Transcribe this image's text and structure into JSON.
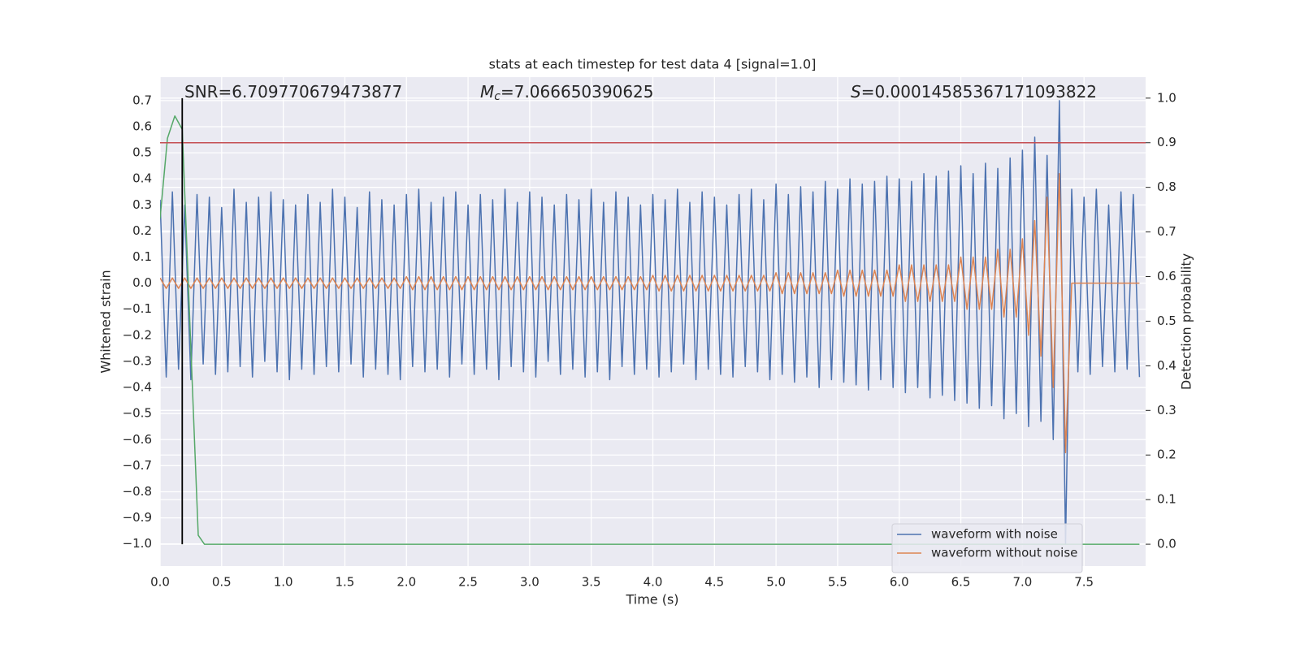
{
  "chart_data": {
    "type": "line",
    "title": "stats at each timestep for test data 4 [signal=1.0]",
    "xlabel": "Time (s)",
    "ylabel": "Whitened strain",
    "y2label": "Detection probability",
    "annotations": [
      {
        "text": "SNR=6.709770679473877"
      },
      {
        "symbol": "M",
        "subscript": "c",
        "text": "=7.066650390625"
      },
      {
        "symbol": "S",
        "text": "=0.00014585367171093822"
      }
    ],
    "xlim": [
      0,
      8.0
    ],
    "ylim": [
      -1.085,
      0.79
    ],
    "y2lim": [
      -0.049,
      1.047
    ],
    "xticks": [
      {
        "value": 0,
        "label": "0.0"
      },
      {
        "value": 0.5,
        "label": "0.5"
      },
      {
        "value": 1,
        "label": "1.0"
      },
      {
        "value": 1.5,
        "label": "1.5"
      },
      {
        "value": 2,
        "label": "2.0"
      },
      {
        "value": 2.5,
        "label": "2.5"
      },
      {
        "value": 3,
        "label": "3.0"
      },
      {
        "value": 3.5,
        "label": "3.5"
      },
      {
        "value": 4,
        "label": "4.0"
      },
      {
        "value": 4.5,
        "label": "4.5"
      },
      {
        "value": 5,
        "label": "5.0"
      },
      {
        "value": 5.5,
        "label": "5.5"
      },
      {
        "value": 6,
        "label": "6.0"
      },
      {
        "value": 6.5,
        "label": "6.5"
      },
      {
        "value": 7,
        "label": "7.0"
      },
      {
        "value": 7.5,
        "label": "7.5"
      }
    ],
    "yticks": [
      {
        "value": 0.7,
        "label": "0.7"
      },
      {
        "value": 0.6,
        "label": "0.6"
      },
      {
        "value": 0.5,
        "label": "0.5"
      },
      {
        "value": 0.4,
        "label": "0.4"
      },
      {
        "value": 0.3,
        "label": "0.3"
      },
      {
        "value": 0.2,
        "label": "0.2"
      },
      {
        "value": 0.1,
        "label": "0.1"
      },
      {
        "value": 0,
        "label": "0.0"
      },
      {
        "value": -0.1,
        "label": "−0.1"
      },
      {
        "value": -0.2,
        "label": "−0.2"
      },
      {
        "value": -0.3,
        "label": "−0.3"
      },
      {
        "value": -0.4,
        "label": "−0.4"
      },
      {
        "value": -0.5,
        "label": "−0.5"
      },
      {
        "value": -0.6,
        "label": "−0.6"
      },
      {
        "value": -0.7,
        "label": "−0.7"
      },
      {
        "value": -0.8,
        "label": "−0.8"
      },
      {
        "value": -0.9,
        "label": "−0.9"
      },
      {
        "value": -1.0,
        "label": "−1.0"
      }
    ],
    "y2ticks": [
      {
        "value": 0,
        "label": "0.0"
      },
      {
        "value": 0.1,
        "label": "0.1"
      },
      {
        "value": 0.2,
        "label": "0.2"
      },
      {
        "value": 0.3,
        "label": "0.3"
      },
      {
        "value": 0.4,
        "label": "0.4"
      },
      {
        "value": 0.5,
        "label": "0.5"
      },
      {
        "value": 0.6,
        "label": "0.6"
      },
      {
        "value": 0.7,
        "label": "0.7"
      },
      {
        "value": 0.8,
        "label": "0.8"
      },
      {
        "value": 0.9,
        "label": "0.9"
      },
      {
        "value": 1.0,
        "label": "1.0"
      }
    ],
    "grid": true,
    "legend": "lower right",
    "x": [
      0,
      0.05,
      0.1,
      0.15,
      0.2,
      0.25,
      0.3,
      0.35,
      0.4,
      0.45,
      0.5,
      0.55,
      0.6,
      0.65,
      0.7,
      0.75,
      0.8,
      0.85,
      0.9,
      0.95,
      1,
      1.05,
      1.1,
      1.15,
      1.2,
      1.25,
      1.3,
      1.35,
      1.4,
      1.45,
      1.5,
      1.55,
      1.6,
      1.65,
      1.7,
      1.75,
      1.8,
      1.85,
      1.9,
      1.95,
      2,
      2.05,
      2.1,
      2.15,
      2.2,
      2.25,
      2.3,
      2.35,
      2.4,
      2.45,
      2.5,
      2.55,
      2.6,
      2.65,
      2.7,
      2.75,
      2.8,
      2.85,
      2.9,
      2.95,
      3,
      3.05,
      3.1,
      3.15,
      3.2,
      3.25,
      3.3,
      3.35,
      3.4,
      3.45,
      3.5,
      3.55,
      3.6,
      3.65,
      3.7,
      3.75,
      3.8,
      3.85,
      3.9,
      3.95,
      4,
      4.05,
      4.1,
      4.15,
      4.2,
      4.25,
      4.3,
      4.35,
      4.4,
      4.45,
      4.5,
      4.55,
      4.6,
      4.65,
      4.7,
      4.75,
      4.8,
      4.85,
      4.9,
      4.95,
      5,
      5.05,
      5.1,
      5.15,
      5.2,
      5.25,
      5.3,
      5.35,
      5.4,
      5.45,
      5.5,
      5.55,
      5.6,
      5.65,
      5.7,
      5.75,
      5.8,
      5.85,
      5.9,
      5.95,
      6,
      6.05,
      6.1,
      6.15,
      6.2,
      6.25,
      6.3,
      6.35,
      6.4,
      6.45,
      6.5,
      6.55,
      6.6,
      6.65,
      6.7,
      6.75,
      6.8,
      6.85,
      6.9,
      6.95,
      7,
      7.05,
      7.1,
      7.15,
      7.2,
      7.25,
      7.3,
      7.35,
      7.4,
      7.45,
      7.5,
      7.55,
      7.6,
      7.65,
      7.7,
      7.75,
      7.8,
      7.85,
      7.9,
      7.95
    ],
    "series": [
      {
        "name": "waveform with noise",
        "color": "#4c72b0",
        "values": [
          0.32,
          -0.36,
          0.35,
          -0.33,
          0.3,
          -0.37,
          0.34,
          -0.31,
          0.33,
          -0.35,
          0.29,
          -0.34,
          0.36,
          -0.32,
          0.31,
          -0.36,
          0.33,
          -0.3,
          0.35,
          -0.34,
          0.32,
          -0.37,
          0.3,
          -0.33,
          0.34,
          -0.35,
          0.31,
          -0.32,
          0.36,
          -0.34,
          0.33,
          -0.31,
          0.29,
          -0.36,
          0.35,
          -0.33,
          0.32,
          -0.35,
          0.3,
          -0.37,
          0.34,
          -0.32,
          0.36,
          -0.34,
          0.31,
          -0.33,
          0.33,
          -0.36,
          0.35,
          -0.31,
          0.3,
          -0.35,
          0.34,
          -0.33,
          0.32,
          -0.37,
          0.36,
          -0.32,
          0.31,
          -0.34,
          0.35,
          -0.36,
          0.33,
          -0.3,
          0.3,
          -0.35,
          0.34,
          -0.33,
          0.32,
          -0.36,
          0.36,
          -0.34,
          0.31,
          -0.37,
          0.35,
          -0.32,
          0.33,
          -0.35,
          0.3,
          -0.33,
          0.34,
          -0.36,
          0.32,
          -0.34,
          0.36,
          -0.31,
          0.31,
          -0.37,
          0.35,
          -0.33,
          0.33,
          -0.35,
          0.3,
          -0.36,
          0.34,
          -0.32,
          0.36,
          -0.34,
          0.32,
          -0.37,
          0.38,
          -0.35,
          0.34,
          -0.38,
          0.37,
          -0.36,
          0.35,
          -0.4,
          0.39,
          -0.37,
          0.36,
          -0.38,
          0.4,
          -0.39,
          0.38,
          -0.41,
          0.39,
          -0.37,
          0.41,
          -0.4,
          0.4,
          -0.42,
          0.39,
          -0.4,
          0.42,
          -0.44,
          0.41,
          -0.43,
          0.43,
          -0.45,
          0.45,
          -0.46,
          0.42,
          -0.48,
          0.46,
          -0.47,
          0.44,
          -0.52,
          0.48,
          -0.5,
          0.51,
          -0.55,
          0.56,
          -0.53,
          0.49,
          -0.6,
          0.7,
          -1.0,
          0.36,
          -0.34,
          0.33,
          -0.35,
          0.36,
          -0.32,
          0.3,
          -0.34,
          0.35,
          -0.33,
          0.34,
          -0.36
        ]
      },
      {
        "name": "waveform without noise",
        "color": "#dd8452",
        "values": [
          0.02,
          -0.02,
          0.02,
          -0.02,
          0.02,
          -0.02,
          0.02,
          -0.02,
          0.02,
          -0.02,
          0.02,
          -0.02,
          0.02,
          -0.02,
          0.02,
          -0.02,
          0.02,
          -0.02,
          0.02,
          -0.02,
          0.02,
          -0.02,
          0.02,
          -0.02,
          0.02,
          -0.02,
          0.02,
          -0.02,
          0.02,
          -0.02,
          0.02,
          -0.02,
          0.02,
          -0.02,
          0.02,
          -0.02,
          0.02,
          -0.02,
          0.02,
          -0.02,
          0.025,
          -0.025,
          0.025,
          -0.025,
          0.025,
          -0.025,
          0.025,
          -0.025,
          0.025,
          -0.025,
          0.025,
          -0.025,
          0.025,
          -0.025,
          0.025,
          -0.025,
          0.025,
          -0.025,
          0.025,
          -0.025,
          0.025,
          -0.025,
          0.025,
          -0.025,
          0.025,
          -0.025,
          0.025,
          -0.025,
          0.025,
          -0.025,
          0.025,
          -0.025,
          0.025,
          -0.025,
          0.025,
          -0.025,
          0.025,
          -0.025,
          0.025,
          -0.025,
          0.03,
          -0.03,
          0.03,
          -0.03,
          0.03,
          -0.03,
          0.03,
          -0.03,
          0.03,
          -0.03,
          0.03,
          -0.03,
          0.03,
          -0.03,
          0.03,
          -0.03,
          0.03,
          -0.03,
          0.03,
          -0.03,
          0.04,
          -0.04,
          0.04,
          -0.04,
          0.04,
          -0.04,
          0.04,
          -0.04,
          0.04,
          -0.04,
          0.05,
          -0.05,
          0.05,
          -0.05,
          0.05,
          -0.05,
          0.05,
          -0.05,
          0.05,
          -0.05,
          0.07,
          -0.07,
          0.07,
          -0.07,
          0.07,
          -0.07,
          0.07,
          -0.07,
          0.07,
          -0.07,
          0.1,
          -0.1,
          0.1,
          -0.1,
          0.1,
          -0.1,
          0.13,
          -0.13,
          0.13,
          -0.13,
          0.17,
          -0.2,
          0.24,
          -0.28,
          0.33,
          -0.4,
          0.42,
          -0.65,
          0,
          0,
          0,
          0,
          0,
          0,
          0,
          0,
          0,
          0,
          0,
          0
        ]
      },
      {
        "name": "detection probability",
        "axis": "y2",
        "color": "#55a868",
        "x": [
          0,
          0.06,
          0.12,
          0.18,
          0.31,
          0.36,
          7.95
        ],
        "values": [
          0.73,
          0.91,
          0.96,
          0.93,
          0.02,
          0,
          0
        ]
      }
    ],
    "hlines": [
      {
        "y": 0.9,
        "axis": "y2",
        "color": "#c44e52"
      }
    ],
    "vlines": [
      {
        "x": 0.18,
        "ymin": 0,
        "ymax": 1.0,
        "axis": "y2",
        "color": "#000000"
      }
    ]
  }
}
